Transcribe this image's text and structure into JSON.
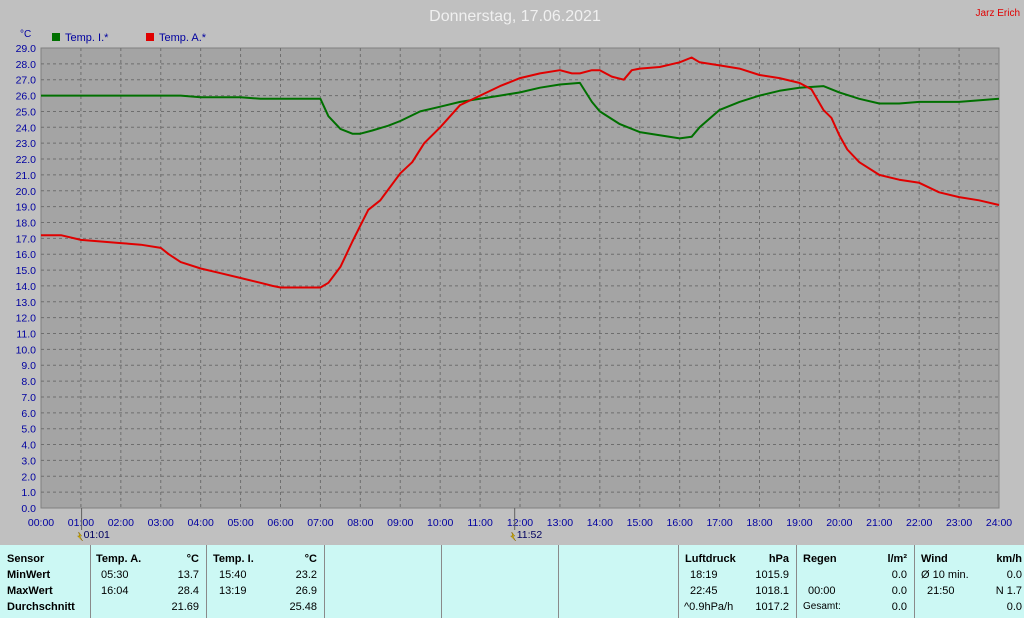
{
  "title": "Donnerstag, 17.06.2021",
  "author": "Jarz Erich",
  "y_unit": "°C",
  "colors": {
    "background": "#c0c0c0",
    "plot_bg": "#a4a4a4",
    "grid": "#6e6e6e",
    "axis_text": "#0000a0",
    "series1": "#007000",
    "series2": "#e00000",
    "table_bg": "#ccf8f4"
  },
  "events": [
    {
      "time": "01:01",
      "label": "01:01",
      "x": 1.017
    },
    {
      "time": "11:52",
      "label": "11:52",
      "x": 11.867
    }
  ],
  "chart_data": {
    "type": "line",
    "title": "Donnerstag, 17.06.2021",
    "xlabel": "",
    "ylabel": "°C",
    "xlim": [
      0,
      24
    ],
    "ylim": [
      0,
      29
    ],
    "grid": true,
    "legend": "top-left",
    "x_ticks": [
      "00:00",
      "01:00",
      "02:00",
      "03:00",
      "04:00",
      "05:00",
      "06:00",
      "07:00",
      "08:00",
      "09:00",
      "10:00",
      "11:00",
      "12:00",
      "13:00",
      "14:00",
      "15:00",
      "16:00",
      "17:00",
      "18:00",
      "19:00",
      "20:00",
      "21:00",
      "22:00",
      "23:00",
      "24:00"
    ],
    "y_ticks": [
      "0.0",
      "1.0",
      "2.0",
      "3.0",
      "4.0",
      "5.0",
      "6.0",
      "7.0",
      "8.0",
      "9.0",
      "10.0",
      "11.0",
      "12.0",
      "13.0",
      "14.0",
      "15.0",
      "16.0",
      "17.0",
      "18.0",
      "19.0",
      "20.0",
      "21.0",
      "22.0",
      "23.0",
      "24.0",
      "25.0",
      "26.0",
      "27.0",
      "28.0",
      "29.0"
    ],
    "series": [
      {
        "name": "Temp. I.*",
        "color": "#007000",
        "x": [
          0,
          1,
          2,
          3,
          3.5,
          4,
          5,
          5.5,
          6,
          6.5,
          7,
          7.2,
          7.5,
          7.8,
          8,
          8.3,
          8.7,
          9,
          9.5,
          10,
          10.5,
          11,
          11.5,
          12,
          12.5,
          13,
          13.5,
          13.8,
          14,
          14.5,
          15,
          15.5,
          16,
          16.3,
          16.5,
          17,
          17.5,
          18,
          18.5,
          19,
          19.6,
          20,
          20.5,
          21,
          21.5,
          22,
          22.5,
          23,
          24
        ],
        "y": [
          26.0,
          26.0,
          26.0,
          26.0,
          26.0,
          25.9,
          25.9,
          25.8,
          25.8,
          25.8,
          25.8,
          24.7,
          23.9,
          23.6,
          23.6,
          23.8,
          24.1,
          24.4,
          25.0,
          25.3,
          25.6,
          25.8,
          26.0,
          26.2,
          26.5,
          26.7,
          26.8,
          25.6,
          25.0,
          24.2,
          23.7,
          23.5,
          23.3,
          23.4,
          24.0,
          25.1,
          25.6,
          26.0,
          26.3,
          26.5,
          26.6,
          26.2,
          25.8,
          25.5,
          25.5,
          25.6,
          25.6,
          25.6,
          25.8
        ]
      },
      {
        "name": "Temp. A.*",
        "color": "#e00000",
        "x": [
          0,
          0.5,
          1,
          1.5,
          2,
          2.5,
          3,
          3.2,
          3.5,
          4,
          4.5,
          5,
          5.5,
          5.8,
          6,
          6.5,
          7,
          7.2,
          7.5,
          7.8,
          8,
          8.2,
          8.5,
          9,
          9.3,
          9.6,
          10,
          10.5,
          11,
          11.5,
          12,
          12.5,
          13,
          13.3,
          13.5,
          13.8,
          14,
          14.3,
          14.6,
          14.8,
          15,
          15.5,
          16,
          16.3,
          16.5,
          17,
          17.5,
          18,
          18.5,
          19,
          19.3,
          19.6,
          19.8,
          20,
          20.2,
          20.5,
          21,
          21.5,
          22,
          22.5,
          23,
          23.5,
          24
        ],
        "y": [
          17.2,
          17.2,
          16.9,
          16.8,
          16.7,
          16.6,
          16.4,
          16.0,
          15.5,
          15.1,
          14.8,
          14.5,
          14.2,
          14.0,
          13.9,
          13.9,
          13.9,
          14.2,
          15.2,
          16.8,
          17.8,
          18.8,
          19.4,
          21.1,
          21.8,
          23.0,
          24.0,
          25.4,
          26.0,
          26.6,
          27.1,
          27.4,
          27.6,
          27.4,
          27.4,
          27.6,
          27.6,
          27.2,
          27.0,
          27.6,
          27.7,
          27.8,
          28.1,
          28.4,
          28.1,
          27.9,
          27.7,
          27.3,
          27.1,
          26.8,
          26.4,
          25.1,
          24.6,
          23.5,
          22.6,
          21.8,
          21.0,
          20.7,
          20.5,
          19.9,
          19.6,
          19.4,
          19.1
        ]
      }
    ]
  },
  "table": {
    "headers": {
      "sensor": "Sensor",
      "temp_a": "Temp. A.",
      "unit_c1": "°C",
      "temp_i": "Temp. I.",
      "unit_c2": "°C",
      "luftdruck": "Luftdruck",
      "unit_hpa": "hPa",
      "regen": "Regen",
      "unit_lm2": "l/m²",
      "wind": "Wind",
      "unit_kmh": "km/h"
    },
    "rows": {
      "min": "MinWert",
      "max": "MaxWert",
      "avg": "Durchschnitt"
    },
    "temp_a": {
      "min_time": "05:30",
      "min_val": "13.7",
      "max_time": "16:04",
      "max_val": "28.4",
      "avg": "21.69"
    },
    "temp_i": {
      "min_time": "15:40",
      "min_val": "23.2",
      "max_time": "13:19",
      "max_val": "26.9",
      "avg": "25.48"
    },
    "luftdruck": {
      "r1_time": "18:19",
      "r1_val": "1015.9",
      "r2_time": "22:45",
      "r2_val": "1018.1",
      "r3_label": "^0.9hPa/h",
      "r3_val": "1017.2"
    },
    "regen": {
      "r1_val": "0.0",
      "r2_time": "00:00",
      "r2_val": "0.0",
      "r3_label": "Gesamt:",
      "r3_val": "0.0"
    },
    "wind": {
      "r1_label": "Ø 10 min.",
      "r1_val": "0.0",
      "r2_time": "21:50",
      "r2_val": "N 1.7",
      "r3_val": "0.0"
    }
  }
}
